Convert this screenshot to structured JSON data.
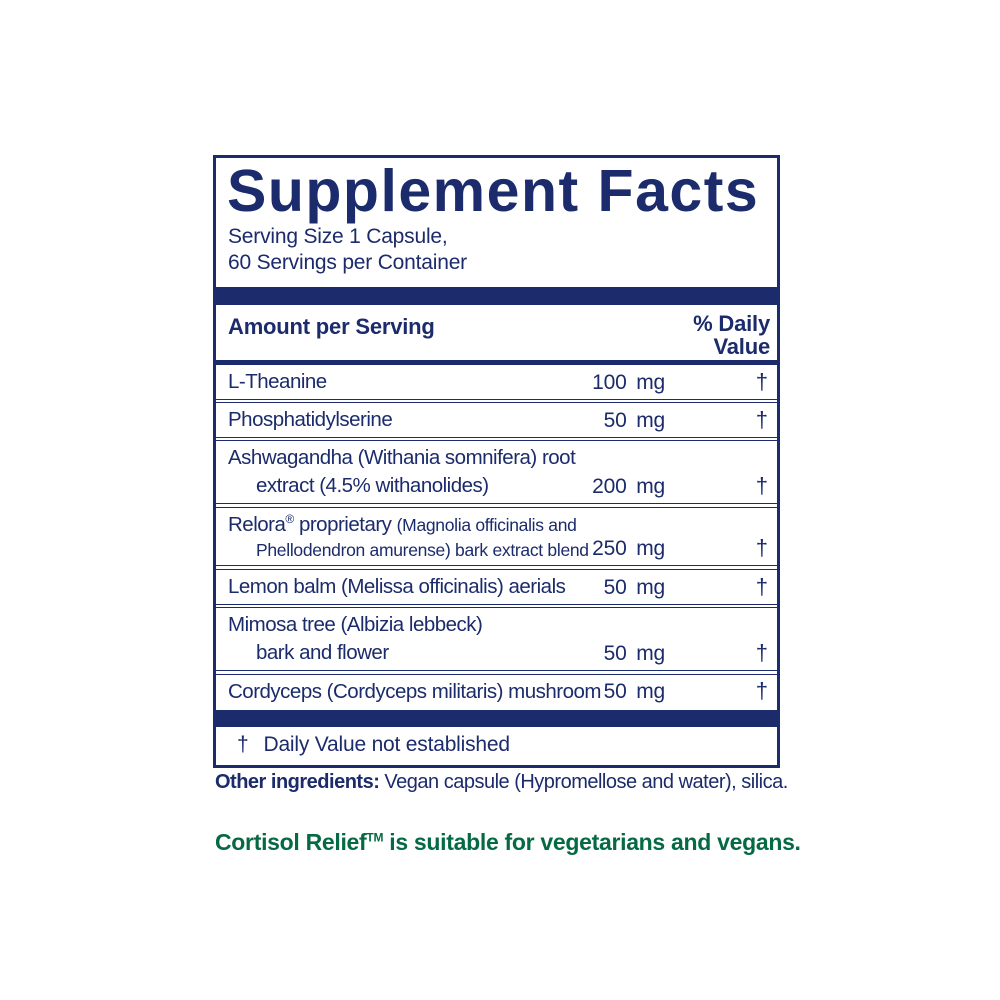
{
  "label": {
    "title": "Supplement Facts",
    "serving_line1": "Serving Size 1 Capsule,",
    "serving_line2": "60 Servings per Container",
    "amount_per_serving": "Amount per Serving",
    "daily_value_line1": "% Daily",
    "daily_value_line2": "Value",
    "rows": [
      {
        "name": "L-Theanine",
        "amount": "100 mg",
        "dv": "†"
      },
      {
        "name": "Phosphatidylserine",
        "amount": "50 mg",
        "dv": "†"
      },
      {
        "name_line1": "Ashwagandha (Withania somnifera) root",
        "name_line2": "extract (4.5% withanolides)",
        "amount": "200 mg",
        "dv": "†"
      },
      {
        "name_main": "Relora",
        "reg_mark": "®",
        "name_rest": "proprietary",
        "name_small1": "(Magnolia officinalis and",
        "name_small2": "Phellodendron amurense) bark extract blend",
        "amount": "250 mg",
        "dv": "†"
      },
      {
        "name": "Lemon balm (Melissa officinalis) aerials",
        "amount": "50 mg",
        "dv": "†"
      },
      {
        "name_line1": "Mimosa tree (Albizia lebbeck)",
        "name_line2": "bark and flower",
        "amount": "50 mg",
        "dv": "†"
      },
      {
        "name": "Cordyceps (Cordyceps militaris) mushroom",
        "amount": "50 mg",
        "dv": "†"
      }
    ],
    "footnote_dagger": "†",
    "footnote_text": "Daily Value not established"
  },
  "other_ingredients": {
    "label": "Other ingredients:",
    "text": "Vegan capsule (Hypromellose and water), silica."
  },
  "tagline": {
    "brand": "Cortisol Relief",
    "tm": "TM",
    "rest": "is suitable for vegetarians and vegans."
  },
  "colors": {
    "navy": "#1b2b6b",
    "green": "#056a43",
    "background": "#ffffff"
  }
}
